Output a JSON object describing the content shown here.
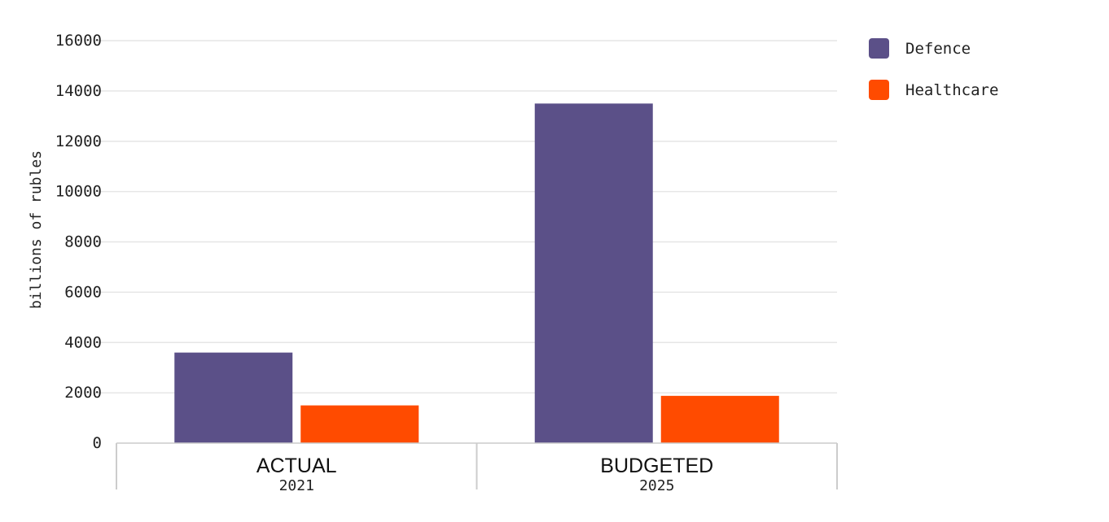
{
  "chart_data": {
    "type": "bar",
    "title": "",
    "xlabel": "",
    "ylabel": "billions of rubles",
    "ylim": [
      0,
      16000
    ],
    "yticks": [
      0,
      2000,
      4000,
      6000,
      8000,
      10000,
      12000,
      14000,
      16000
    ],
    "grid": true,
    "legend_position": "top-right",
    "categories": [
      {
        "label": "ACTUAL",
        "sublabel": "2021"
      },
      {
        "label": "BUDGETED",
        "sublabel": "2025"
      }
    ],
    "series": [
      {
        "name": "Defence",
        "color": "#5b5088",
        "values": [
          3600,
          13500
        ]
      },
      {
        "name": "Healthcare",
        "color": "#ff4b00",
        "values": [
          1500,
          1880
        ]
      }
    ]
  }
}
